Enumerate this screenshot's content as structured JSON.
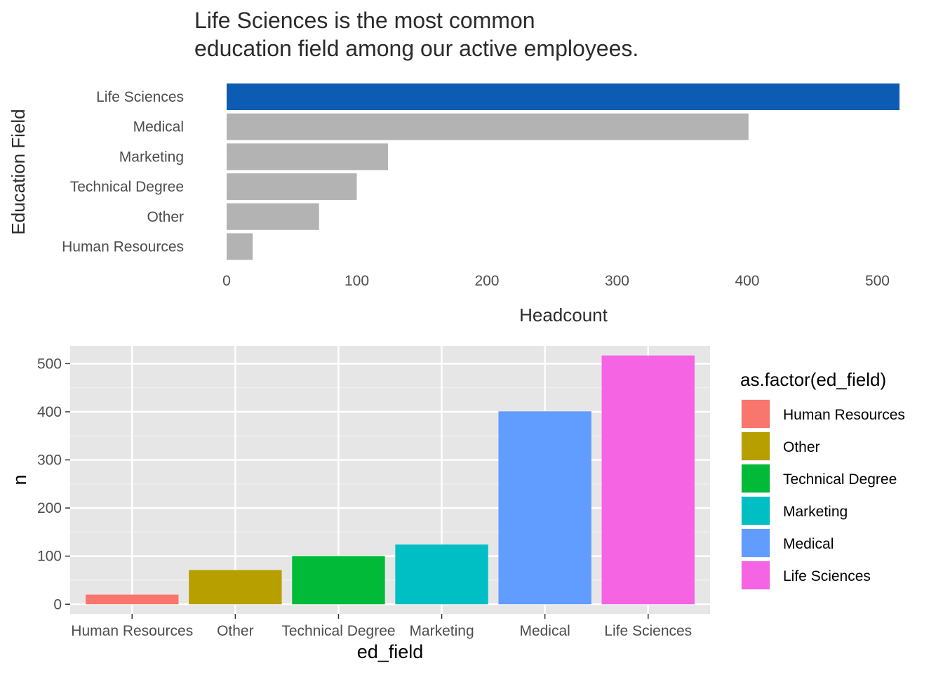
{
  "chart_data": [
    {
      "type": "bar",
      "orientation": "horizontal",
      "title_lines": [
        "Life Sciences is the most common",
        "education field among our active employees."
      ],
      "xlabel": "Headcount",
      "ylabel": "Education Field",
      "categories": [
        "Life Sciences",
        "Medical",
        "Marketing",
        "Technical Degree",
        "Other",
        "Human Resources"
      ],
      "values": [
        517,
        401,
        124,
        100,
        71,
        20
      ],
      "highlight": "Life Sciences",
      "highlight_color": "#0b5cb2",
      "base_color": "#b3b3b3",
      "xlim": [
        0,
        517
      ],
      "xticks": [
        0,
        100,
        200,
        300,
        400,
        500
      ],
      "grid": false
    },
    {
      "type": "bar",
      "orientation": "vertical",
      "xlabel": "ed_field",
      "ylabel": "n",
      "categories": [
        "Human Resources",
        "Other",
        "Technical Degree",
        "Marketing",
        "Medical",
        "Life Sciences"
      ],
      "values": [
        20,
        71,
        100,
        124,
        401,
        517
      ],
      "colors": [
        "#f8766d",
        "#b79f00",
        "#00ba38",
        "#00bfc4",
        "#619cff",
        "#f564e3"
      ],
      "ylim": [
        -20,
        537
      ],
      "yticks": [
        0,
        100,
        200,
        300,
        400,
        500
      ],
      "grid": true,
      "panel_background": "#e6e6e6",
      "legend": {
        "title": "as.factor(ed_field)",
        "position": "right",
        "entries": [
          "Human Resources",
          "Other",
          "Technical Degree",
          "Marketing",
          "Medical",
          "Life Sciences"
        ]
      }
    }
  ]
}
